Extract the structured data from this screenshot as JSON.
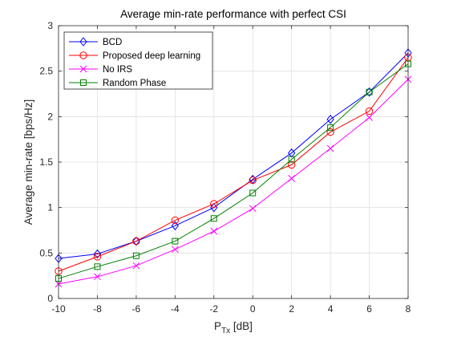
{
  "chart_data": {
    "type": "line",
    "title": "Average min-rate performance with perfect CSI",
    "xlabel": "P",
    "xlabel_sub": "Tx",
    "xlabel_unit": " [dB]",
    "ylabel": "Average min-rate [bps/Hz]",
    "x": [
      -10,
      -8,
      -6,
      -4,
      -2,
      0,
      2,
      4,
      6,
      8
    ],
    "xlim": [
      -10,
      8
    ],
    "ylim": [
      0,
      3
    ],
    "xticks": [
      -10,
      -8,
      -6,
      -4,
      -2,
      0,
      2,
      4,
      6,
      8
    ],
    "xtick_labels": [
      "-10",
      "-8",
      "-6",
      "-4",
      "-2",
      "0",
      "2",
      "4",
      "6",
      "8"
    ],
    "yticks": [
      0,
      0.5,
      1,
      1.5,
      2,
      2.5,
      3
    ],
    "ytick_labels": [
      "0",
      "0.5",
      "1",
      "1.5",
      "2",
      "2.5",
      "3"
    ],
    "grid": true,
    "legend_position": "top-left",
    "series": [
      {
        "name": "BCD",
        "color": "#0000ff",
        "marker": "diamond",
        "values": [
          0.44,
          0.49,
          0.63,
          0.8,
          1.0,
          1.31,
          1.6,
          1.97,
          2.27,
          2.7
        ]
      },
      {
        "name": "Proposed deep learning",
        "color": "#ff0000",
        "marker": "circle",
        "values": [
          0.3,
          0.46,
          0.63,
          0.86,
          1.04,
          1.3,
          1.47,
          1.83,
          2.06,
          2.65
        ]
      },
      {
        "name": "No IRS",
        "color": "#ff00ff",
        "marker": "x",
        "values": [
          0.16,
          0.24,
          0.36,
          0.54,
          0.74,
          0.99,
          1.32,
          1.65,
          1.99,
          2.41
        ]
      },
      {
        "name": "Random Phase",
        "color": "#008000",
        "marker": "square",
        "values": [
          0.22,
          0.35,
          0.47,
          0.63,
          0.88,
          1.16,
          1.53,
          1.88,
          2.27,
          2.58
        ]
      }
    ]
  }
}
